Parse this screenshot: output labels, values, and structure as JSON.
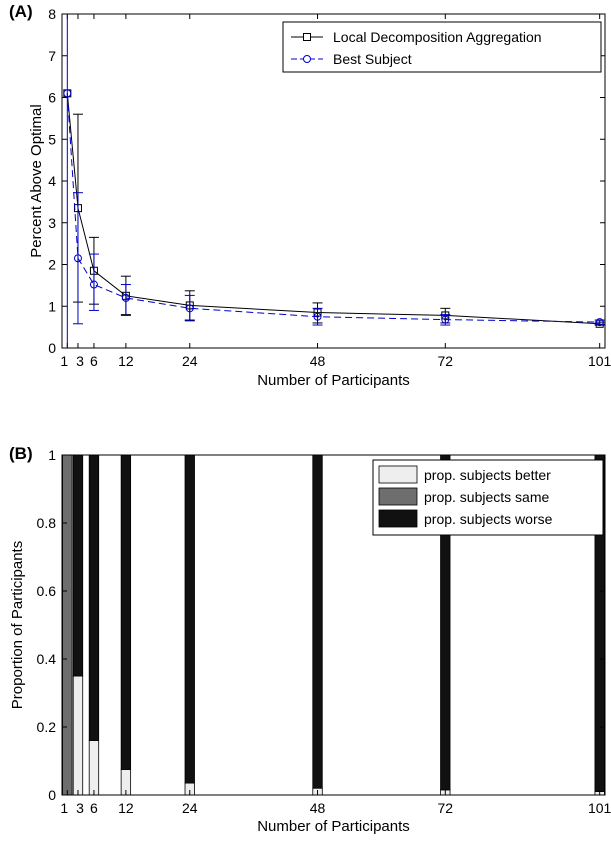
{
  "chart_data": [
    {
      "type": "line",
      "panel_label": "(A)",
      "xlabel": "Number of Participants",
      "ylabel": "Percent Above Optimal",
      "x_ticks": [
        "1",
        "3",
        "6",
        "12",
        "24",
        "48",
        "72",
        "101"
      ],
      "y_ticks": [
        "0",
        "1",
        "2",
        "3",
        "4",
        "5",
        "6",
        "7",
        "8"
      ],
      "xlim": [
        0,
        102
      ],
      "ylim": [
        0,
        8
      ],
      "legend_position": "top-right",
      "series": [
        {
          "name": "Local Decomposition Aggregation",
          "color": "#000000",
          "marker": "square",
          "line_style": "solid",
          "x": [
            1,
            3,
            6,
            12,
            24,
            48,
            72,
            101
          ],
          "y": [
            6.1,
            3.35,
            1.85,
            1.25,
            1.02,
            0.85,
            0.78,
            0.58
          ],
          "err_low": [
            null,
            1.1,
            1.05,
            0.8,
            0.67,
            0.6,
            0.6,
            0.55
          ],
          "err_high": [
            null,
            5.6,
            2.65,
            1.72,
            1.37,
            1.08,
            0.95,
            0.62
          ]
        },
        {
          "name": "Best Subject",
          "color": "#0000cc",
          "marker": "circle",
          "line_style": "dashed",
          "x": [
            1,
            3,
            6,
            12,
            24,
            48,
            72,
            101
          ],
          "y": [
            6.1,
            2.15,
            1.52,
            1.2,
            0.95,
            0.75,
            0.68,
            0.62
          ],
          "err_low": [
            0,
            0.58,
            0.9,
            0.78,
            0.65,
            0.55,
            0.55,
            0.57
          ],
          "err_high": [
            8,
            3.72,
            2.25,
            1.52,
            1.26,
            0.95,
            0.8,
            0.67
          ]
        }
      ]
    },
    {
      "type": "bar",
      "stacked": true,
      "panel_label": "(B)",
      "xlabel": "Number of Participants",
      "ylabel": "Proportion of Participants",
      "x_ticks": [
        "1",
        "3",
        "6",
        "12",
        "24",
        "48",
        "72",
        "101"
      ],
      "y_ticks": [
        "0",
        "0.2",
        "0.4",
        "0.6",
        "0.8",
        "1"
      ],
      "xlim": [
        0,
        102
      ],
      "ylim": [
        0,
        1
      ],
      "legend_position": "top-right",
      "categories": [
        1,
        3,
        6,
        12,
        24,
        48,
        72,
        101
      ],
      "series": [
        {
          "name": "prop. subjects better",
          "color": "#eeeeee",
          "values": [
            0,
            0.35,
            0.16,
            0.075,
            0.035,
            0.02,
            0.015,
            0.01
          ]
        },
        {
          "name": "prop. subjects same",
          "color": "#6e6e6e",
          "values": [
            1,
            0,
            0,
            0,
            0,
            0,
            0,
            0
          ]
        },
        {
          "name": "prop. subjects worse",
          "color": "#111111",
          "values": [
            0,
            0.65,
            0.84,
            0.925,
            0.965,
            0.98,
            0.985,
            0.99
          ]
        }
      ]
    }
  ]
}
